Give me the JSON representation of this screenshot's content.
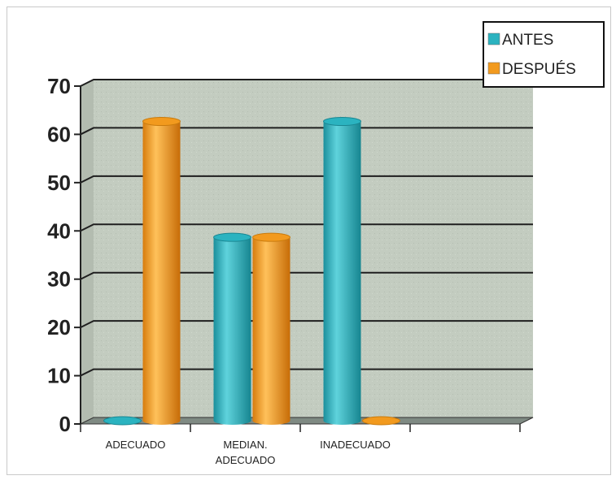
{
  "chart_data": {
    "type": "bar",
    "categories": [
      [
        "ADECUADO"
      ],
      [
        "MEDIAN.",
        "ADECUADO"
      ],
      [
        "INADECUADO"
      ],
      [
        ""
      ]
    ],
    "series": [
      {
        "name": "ANTES",
        "values": [
          0,
          38,
          62,
          null
        ],
        "color": "#2bb3c0"
      },
      {
        "name": "DESPUÉS",
        "values": [
          62,
          38,
          0,
          null
        ],
        "color": "#f29a1e"
      }
    ],
    "ylim": [
      0,
      70
    ],
    "yticks": [
      0,
      10,
      20,
      30,
      40,
      50,
      60,
      70
    ],
    "grid": true,
    "legend_position": "top-right",
    "colors": {
      "wall": "#c3ccc0",
      "floor": "#7f8a83",
      "gridline": "#1f1f1f"
    }
  }
}
